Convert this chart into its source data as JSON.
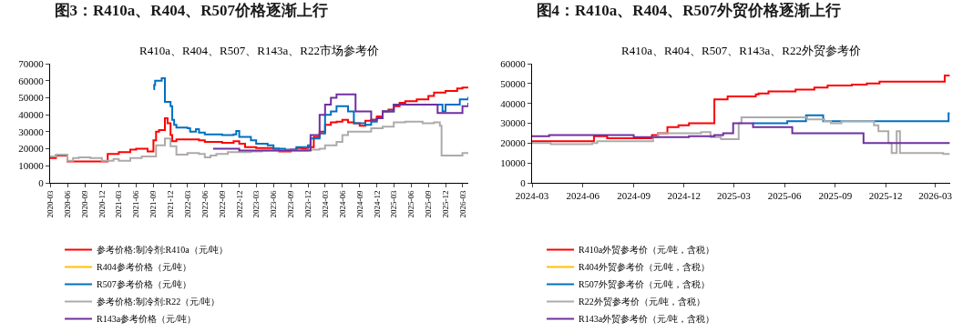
{
  "chart_data": [
    {
      "type": "step",
      "title": "图3：R410a、R404、R507价格逐渐上行",
      "subtitle": "R410a、R404、R507、R143a、R22市场参考价",
      "xlim": [
        "2020-03",
        "2026-04"
      ],
      "xticks": [
        "2020-03",
        "2020-06",
        "2020-09",
        "2020-12",
        "2021-03",
        "2021-06",
        "2021-09",
        "2021-12",
        "2022-03",
        "2022-06",
        "2022-09",
        "2022-12",
        "2023-03",
        "2023-06",
        "2023-09",
        "2023-12",
        "2024-03",
        "2024-06",
        "2024-09",
        "2024-12",
        "2025-03",
        "2025-06",
        "2025-09",
        "2025-12",
        "2026-03"
      ],
      "ylim": [
        0,
        70000
      ],
      "yticks": [
        0,
        10000,
        20000,
        30000,
        40000,
        50000,
        60000,
        70000
      ],
      "grid": false,
      "legend": "bottom",
      "series": [
        {
          "name": "参考价格:制冷剂:R410a（元/吨）",
          "color": "#ff0000",
          "x": [
            "2020-03",
            "2020-04",
            "2020-06",
            "2020-12",
            "2021-01",
            "2021-03",
            "2021-05",
            "2021-06",
            "2021-08",
            "2021-09",
            "2021-09-15",
            "2021-10",
            "2021-11",
            "2021-11-15",
            "2021-12",
            "2021-12-10",
            "2022-01",
            "2022-05",
            "2022-06",
            "2022-09",
            "2022-11",
            "2022-12",
            "2023-01",
            "2023-03",
            "2023-06",
            "2023-07",
            "2023-09",
            "2023-10",
            "2023-11",
            "2023-12",
            "2024-01",
            "2024-02",
            "2024-03",
            "2024-04",
            "2024-05",
            "2024-06",
            "2024-07",
            "2024-08",
            "2024-09",
            "2024-10",
            "2024-11",
            "2024-12",
            "2025-01",
            "2025-02",
            "2025-03",
            "2025-04",
            "2025-05",
            "2025-07",
            "2025-09",
            "2025-10",
            "2025-12",
            "2026-02",
            "2026-03",
            "2026-04"
          ],
          "values": [
            14500,
            16000,
            12500,
            12500,
            17000,
            18000,
            19500,
            20000,
            18500,
            25000,
            30000,
            31000,
            38000,
            35000,
            28000,
            24500,
            25500,
            25000,
            24000,
            23500,
            24500,
            23000,
            21000,
            20500,
            20000,
            18500,
            19500,
            20500,
            20000,
            21000,
            27000,
            30000,
            34000,
            35500,
            36000,
            37000,
            35500,
            35000,
            33500,
            36500,
            37000,
            39000,
            42000,
            43000,
            45000,
            47000,
            48000,
            49000,
            51000,
            53000,
            54000,
            55500,
            56000,
            56000
          ]
        },
        {
          "name": "R404参考价格（元/吨）",
          "color": "#ffc000"
        },
        {
          "name": "R507参考价格（元/吨）",
          "color": "#0070c0",
          "x": [
            "2021-09",
            "2021-09-05",
            "2021-09-10",
            "2021-10-15",
            "2021-11",
            "2021-12",
            "2021-12-10",
            "2021-12-20",
            "2022-01",
            "2022-03",
            "2022-03-15",
            "2022-04-15",
            "2022-05",
            "2022-06",
            "2022-09",
            "2022-11",
            "2022-11-15",
            "2022-12",
            "2023-02",
            "2023-03",
            "2023-05",
            "2023-06",
            "2023-08",
            "2023-10",
            "2023-12",
            "2023-12-15",
            "2024-02",
            "2024-03",
            "2024-04",
            "2024-05",
            "2024-07",
            "2024-08",
            "2024-10",
            "2024-11",
            "2024-12",
            "2025-01",
            "2025-03",
            "2025-11-15",
            "2025-12",
            "2026-02-15",
            "2026-04"
          ],
          "values": [
            55000,
            57500,
            60000,
            61500,
            47500,
            45000,
            37000,
            34000,
            32500,
            32000,
            30000,
            31500,
            29500,
            28500,
            28000,
            28500,
            30500,
            27000,
            25000,
            23000,
            22000,
            20000,
            19500,
            21000,
            22000,
            26000,
            29000,
            40000,
            42000,
            45000,
            42000,
            35000,
            34000,
            36000,
            38000,
            42000,
            46000,
            42000,
            46000,
            49000,
            50500
          ]
        },
        {
          "name": "参考价格:制冷剂:R22（元/吨）",
          "color": "#aeaaaa",
          "x": [
            "2020-03",
            "2020-04",
            "2020-06",
            "2020-07",
            "2020-08",
            "2020-10",
            "2020-12",
            "2021-02",
            "2021-03",
            "2021-05",
            "2021-07",
            "2021-09",
            "2021-09-15",
            "2021-11",
            "2021-12",
            "2022-01",
            "2022-03",
            "2022-05",
            "2022-06",
            "2022-07",
            "2022-08",
            "2022-10",
            "2023-02",
            "2023-04",
            "2023-12",
            "2024-02",
            "2024-03",
            "2024-05",
            "2024-06",
            "2024-07",
            "2024-09",
            "2024-11",
            "2025-01",
            "2025-03",
            "2025-05",
            "2025-08",
            "2025-10",
            "2025-11",
            "2025-11-10",
            "2026-02",
            "2026-03",
            "2026-04"
          ],
          "values": [
            15500,
            16500,
            13000,
            14500,
            15000,
            14500,
            13000,
            14000,
            13000,
            14500,
            15500,
            15500,
            22000,
            26000,
            21500,
            16500,
            17500,
            17000,
            15000,
            16000,
            17000,
            18000,
            18500,
            19000,
            19500,
            20000,
            22000,
            24000,
            28000,
            30000,
            30000,
            32000,
            33000,
            35500,
            36000,
            35000,
            35500,
            33500,
            16000,
            16000,
            17500,
            17500
          ]
        },
        {
          "name": "R143a参考价格（元/吨）",
          "color": "#7030a0",
          "x": [
            "2022-07-15",
            "2022-12",
            "2023-12",
            "2023-12-15",
            "2024-02",
            "2024-03",
            "2024-04",
            "2024-05",
            "2024-08",
            "2024-08-10",
            "2024-10",
            "2024-11",
            "2024-12",
            "2025-01",
            "2025-03",
            "2025-10-15",
            "2025-10-20",
            "2026-02-15",
            "2026-03",
            "2026-04"
          ],
          "values": [
            20000,
            19000,
            19000,
            28000,
            40000,
            46000,
            50000,
            52000,
            52000,
            42000,
            42000,
            37000,
            38000,
            42000,
            46000,
            46000,
            41000,
            41000,
            45000,
            47000
          ]
        }
      ]
    },
    {
      "type": "step",
      "title": "图4：R410a、R404、R507外贸价格逐渐上行",
      "subtitle": "R410a、R404、R507、R143a、R22外贸参考价",
      "xlim": [
        "2024-03",
        "2026-03-28"
      ],
      "xticks": [
        "2024-03",
        "2024-06",
        "2024-09",
        "2024-12",
        "2025-03",
        "2025-06",
        "2025-09",
        "2025-12",
        "2026-03"
      ],
      "ylim": [
        0,
        60000
      ],
      "yticks": [
        0,
        10000,
        20000,
        30000,
        40000,
        50000,
        60000
      ],
      "grid": false,
      "legend": "bottom",
      "series": [
        {
          "name": "R410a外贸参考价（元/吨，含税）",
          "color": "#ff0000",
          "x": [
            "2024-03-01",
            "2024-06-21",
            "2024-07-15",
            "2024-10-04",
            "2024-10-15",
            "2024-11-01",
            "2024-11-21",
            "2024-12-10",
            "2025-01-25",
            "2025-02-18",
            "2025-04-10",
            "2025-04-15",
            "2025-05-03",
            "2025-06-21",
            "2025-07-25",
            "2025-08-18",
            "2025-10-01",
            "2025-10-28",
            "2025-11-20",
            "2026-03-18",
            "2026-03-27"
          ],
          "values": [
            21000,
            23500,
            22500,
            24000,
            25000,
            28000,
            29000,
            30000,
            42000,
            43500,
            44500,
            45000,
            46000,
            47000,
            48000,
            49000,
            49500,
            50000,
            51000,
            54000,
            54000
          ]
        },
        {
          "name": "R404外贸参考价（元/吨，含税）",
          "color": "#ffc000"
        },
        {
          "name": "R507外贸参考价（元/吨，含税）",
          "color": "#0070c0",
          "x": [
            "2025-04-05",
            "2025-06-06",
            "2025-07-10",
            "2025-08-10",
            "2026-03-20",
            "2026-03-25",
            "2026-03-27"
          ],
          "values": [
            30000,
            31000,
            34000,
            31000,
            31000,
            35000,
            35000
          ]
        },
        {
          "name": "R22外贸参考价（元/吨，含税）",
          "color": "#aeaaaa",
          "x": [
            "2024-03-01",
            "2024-04-04",
            "2024-06-18",
            "2024-06-27",
            "2024-10-06",
            "2024-10-15",
            "2025-01-01",
            "2025-01-18",
            "2025-02-06",
            "2025-03-10",
            "2025-03-15",
            "2025-07-12",
            "2025-08-12",
            "2025-08-24",
            "2025-09-12",
            "2025-11-10",
            "2025-11-18",
            "2025-12-06",
            "2025-12-12",
            "2025-12-21",
            "2025-12-27",
            "2026-03-15",
            "2026-03-27"
          ],
          "values": [
            20000,
            19500,
            20000,
            21000,
            23000,
            25000,
            25500,
            23000,
            22000,
            30000,
            33000,
            32000,
            31000,
            30000,
            31000,
            29000,
            26000,
            20000,
            15000,
            26000,
            15000,
            14500,
            14500
          ]
        },
        {
          "name": "R143a外贸参考价（元/吨，含税）",
          "color": "#7030a0",
          "x": [
            "2024-03-01",
            "2024-04-01",
            "2024-09-01",
            "2024-12-10",
            "2025-01-25",
            "2025-02-10",
            "2025-02-28",
            "2025-04-05",
            "2025-06-15",
            "2025-10-22",
            "2026-03-27"
          ],
          "values": [
            23500,
            24000,
            23000,
            23500,
            24000,
            25000,
            30000,
            28000,
            25000,
            20000,
            20000
          ]
        }
      ]
    }
  ]
}
